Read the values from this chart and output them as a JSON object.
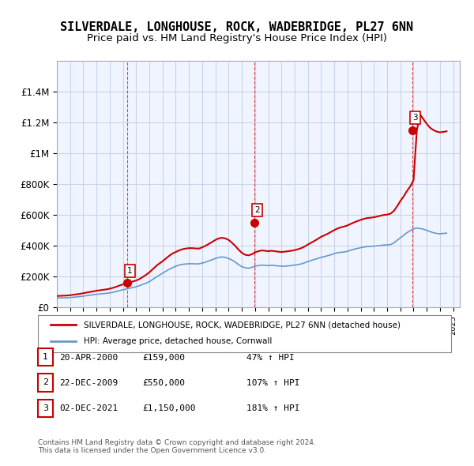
{
  "title": "SILVERDALE, LONGHOUSE, ROCK, WADEBRIDGE, PL27 6NN",
  "subtitle": "Price paid vs. HM Land Registry's House Price Index (HPI)",
  "title_fontsize": 11,
  "subtitle_fontsize": 9.5,
  "xlabel": "",
  "ylabel": "",
  "ylim": [
    0,
    1600000
  ],
  "yticks": [
    0,
    200000,
    400000,
    600000,
    800000,
    1000000,
    1200000,
    1400000
  ],
  "ytick_labels": [
    "£0",
    "£200K",
    "£400K",
    "£600K",
    "£800K",
    "£1M",
    "£1.2M",
    "£1.4M"
  ],
  "xlim_start": 1995.0,
  "xlim_end": 2025.5,
  "red_line_color": "#cc0000",
  "blue_line_color": "#6699cc",
  "background_color": "#f0f4ff",
  "grid_color": "#c8d4e8",
  "sale_marker_color": "#cc0000",
  "sale_points": [
    {
      "label": "1",
      "year": 2000.31,
      "price": 159000
    },
    {
      "label": "2",
      "year": 2009.98,
      "price": 550000
    },
    {
      "label": "3",
      "year": 2021.92,
      "price": 1150000
    }
  ],
  "sale_table": [
    {
      "num": "1",
      "date": "20-APR-2000",
      "price": "£159,000",
      "pct": "47% ↑ HPI"
    },
    {
      "num": "2",
      "date": "22-DEC-2009",
      "price": "£550,000",
      "pct": "107% ↑ HPI"
    },
    {
      "num": "3",
      "date": "02-DEC-2021",
      "price": "£1,150,000",
      "pct": "181% ↑ HPI"
    }
  ],
  "legend_entries": [
    "SILVERDALE, LONGHOUSE, ROCK, WADEBRIDGE, PL27 6NN (detached house)",
    "HPI: Average price, detached house, Cornwall"
  ],
  "footer_text": "Contains HM Land Registry data © Crown copyright and database right 2024.\nThis data is licensed under the Open Government Licence v3.0.",
  "hpi_xdata": [
    1995.0,
    1995.25,
    1995.5,
    1995.75,
    1996.0,
    1996.25,
    1996.5,
    1996.75,
    1997.0,
    1997.25,
    1997.5,
    1997.75,
    1998.0,
    1998.25,
    1998.5,
    1998.75,
    1999.0,
    1999.25,
    1999.5,
    1999.75,
    2000.0,
    2000.25,
    2000.5,
    2000.75,
    2001.0,
    2001.25,
    2001.5,
    2001.75,
    2002.0,
    2002.25,
    2002.5,
    2002.75,
    2003.0,
    2003.25,
    2003.5,
    2003.75,
    2004.0,
    2004.25,
    2004.5,
    2004.75,
    2005.0,
    2005.25,
    2005.5,
    2005.75,
    2006.0,
    2006.25,
    2006.5,
    2006.75,
    2007.0,
    2007.25,
    2007.5,
    2007.75,
    2008.0,
    2008.25,
    2008.5,
    2008.75,
    2009.0,
    2009.25,
    2009.5,
    2009.75,
    2010.0,
    2010.25,
    2010.5,
    2010.75,
    2011.0,
    2011.25,
    2011.5,
    2011.75,
    2012.0,
    2012.25,
    2012.5,
    2012.75,
    2013.0,
    2013.25,
    2013.5,
    2013.75,
    2014.0,
    2014.25,
    2014.5,
    2014.75,
    2015.0,
    2015.25,
    2015.5,
    2015.75,
    2016.0,
    2016.25,
    2016.5,
    2016.75,
    2017.0,
    2017.25,
    2017.5,
    2017.75,
    2018.0,
    2018.25,
    2018.5,
    2018.75,
    2019.0,
    2019.25,
    2019.5,
    2019.75,
    2020.0,
    2020.25,
    2020.5,
    2020.75,
    2021.0,
    2021.25,
    2021.5,
    2021.75,
    2022.0,
    2022.25,
    2022.5,
    2022.75,
    2023.0,
    2023.25,
    2023.5,
    2023.75,
    2024.0,
    2024.25,
    2024.5
  ],
  "hpi_ydata": [
    62000,
    62500,
    63000,
    63500,
    65000,
    67000,
    69000,
    71000,
    74000,
    77000,
    80000,
    83000,
    86000,
    88000,
    90000,
    92000,
    95000,
    99000,
    104000,
    110000,
    115000,
    120000,
    125000,
    130000,
    135000,
    142000,
    150000,
    158000,
    168000,
    182000,
    196000,
    210000,
    222000,
    235000,
    248000,
    258000,
    268000,
    275000,
    280000,
    282000,
    284000,
    284000,
    283000,
    283000,
    288000,
    294000,
    302000,
    310000,
    318000,
    325000,
    328000,
    325000,
    318000,
    308000,
    295000,
    278000,
    265000,
    258000,
    255000,
    260000,
    268000,
    272000,
    275000,
    274000,
    272000,
    274000,
    272000,
    270000,
    268000,
    268000,
    270000,
    272000,
    275000,
    278000,
    283000,
    290000,
    298000,
    305000,
    312000,
    318000,
    325000,
    330000,
    336000,
    342000,
    350000,
    355000,
    358000,
    360000,
    365000,
    372000,
    378000,
    383000,
    388000,
    392000,
    395000,
    396000,
    398000,
    400000,
    402000,
    405000,
    406000,
    408000,
    418000,
    435000,
    452000,
    468000,
    485000,
    498000,
    510000,
    515000,
    512000,
    508000,
    500000,
    492000,
    485000,
    480000,
    478000,
    480000,
    482000
  ],
  "red_xdata": [
    1995.0,
    1995.25,
    1995.5,
    1995.75,
    1996.0,
    1996.25,
    1996.5,
    1996.75,
    1997.0,
    1997.25,
    1997.5,
    1997.75,
    1998.0,
    1998.25,
    1998.5,
    1998.75,
    1999.0,
    1999.25,
    1999.5,
    1999.75,
    2000.0,
    2000.25,
    2000.5,
    2000.75,
    2001.0,
    2001.25,
    2001.5,
    2001.75,
    2002.0,
    2002.25,
    2002.5,
    2002.75,
    2003.0,
    2003.25,
    2003.5,
    2003.75,
    2004.0,
    2004.25,
    2004.5,
    2004.75,
    2005.0,
    2005.25,
    2005.5,
    2005.75,
    2006.0,
    2006.25,
    2006.5,
    2006.75,
    2007.0,
    2007.25,
    2007.5,
    2007.75,
    2008.0,
    2008.25,
    2008.5,
    2008.75,
    2009.0,
    2009.25,
    2009.5,
    2009.75,
    2010.0,
    2010.25,
    2010.5,
    2010.75,
    2011.0,
    2011.25,
    2011.5,
    2011.75,
    2012.0,
    2012.25,
    2012.5,
    2012.75,
    2013.0,
    2013.25,
    2013.5,
    2013.75,
    2014.0,
    2014.25,
    2014.5,
    2014.75,
    2015.0,
    2015.25,
    2015.5,
    2015.75,
    2016.0,
    2016.25,
    2016.5,
    2016.75,
    2017.0,
    2017.25,
    2017.5,
    2017.75,
    2018.0,
    2018.25,
    2018.5,
    2018.75,
    2019.0,
    2019.25,
    2019.5,
    2019.75,
    2020.0,
    2020.25,
    2020.5,
    2020.75,
    2021.0,
    2021.25,
    2021.5,
    2021.75,
    2022.0,
    2022.25,
    2022.5,
    2022.75,
    2023.0,
    2023.25,
    2023.5,
    2023.75,
    2024.0,
    2024.25,
    2024.5
  ],
  "red_ydata": [
    75000,
    76000,
    77000,
    78000,
    80000,
    83000,
    86000,
    89000,
    93000,
    97000,
    101000,
    105000,
    109000,
    112000,
    115000,
    118000,
    122000,
    128000,
    135000,
    143000,
    150000,
    155000,
    162000,
    169000,
    175000,
    185000,
    198000,
    212000,
    228000,
    248000,
    268000,
    285000,
    300000,
    318000,
    335000,
    350000,
    360000,
    370000,
    378000,
    382000,
    385000,
    385000,
    383000,
    382000,
    390000,
    400000,
    412000,
    425000,
    438000,
    448000,
    452000,
    448000,
    438000,
    420000,
    400000,
    375000,
    355000,
    342000,
    338000,
    345000,
    358000,
    365000,
    370000,
    368000,
    365000,
    368000,
    365000,
    362000,
    360000,
    362000,
    365000,
    368000,
    372000,
    378000,
    385000,
    395000,
    408000,
    420000,
    432000,
    445000,
    458000,
    468000,
    478000,
    490000,
    502000,
    512000,
    520000,
    525000,
    532000,
    542000,
    552000,
    560000,
    568000,
    575000,
    580000,
    582000,
    585000,
    590000,
    595000,
    600000,
    602000,
    608000,
    625000,
    655000,
    690000,
    720000,
    755000,
    785000,
    825000,
    1150000,
    1250000,
    1220000,
    1190000,
    1165000,
    1150000,
    1140000,
    1135000,
    1138000,
    1142000
  ]
}
